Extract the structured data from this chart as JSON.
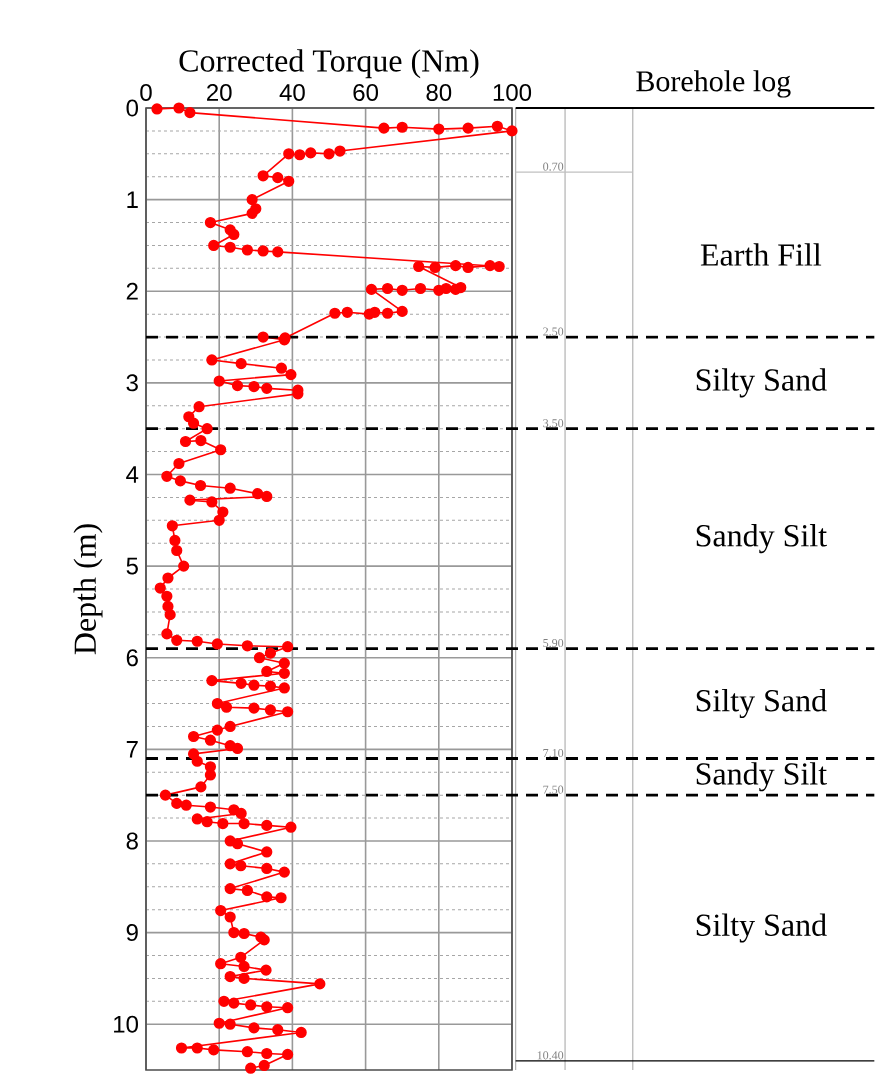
{
  "chart_data": {
    "type": "line",
    "xlabel": "Corrected Torque (Nm)",
    "ylabel": "Depth (m)",
    "xlim": [
      0,
      100
    ],
    "xticks": [
      0,
      20,
      40,
      60,
      80,
      100
    ],
    "ylim": [
      10.5,
      0
    ],
    "yticks": [
      0,
      1,
      2,
      3,
      4,
      5,
      6,
      7,
      8,
      9,
      10
    ],
    "grid": true,
    "marker": "circle",
    "series": [
      {
        "color": "#ff0000",
        "x": [
          3,
          9,
          12,
          65,
          70,
          80,
          88,
          96,
          100,
          53,
          50,
          45,
          42,
          39,
          32,
          36,
          39,
          29,
          30,
          29,
          17.6,
          23,
          24,
          18.5,
          23,
          27.7,
          32,
          36,
          96.5,
          94,
          88,
          84.6,
          79,
          74.5,
          86,
          84.6,
          82,
          80,
          75,
          70,
          66,
          61.6,
          70,
          66,
          62.5,
          61,
          55,
          51.6,
          38,
          32,
          37.8,
          18,
          26,
          37,
          39.6,
          20,
          25,
          29.5,
          33,
          41.5,
          41.5,
          14.5,
          11.7,
          13,
          16.7,
          10.8,
          15,
          20.4,
          9,
          5.7,
          9.4,
          14.9,
          23,
          30.5,
          33,
          12,
          18,
          21,
          20,
          7.2,
          7.9,
          8.4,
          10.3,
          6,
          3.9,
          5.7,
          6,
          6.6,
          5.7,
          8.4,
          14,
          19.5,
          27.7,
          38.7,
          34,
          31,
          37.8,
          33,
          37.8,
          18,
          26,
          29.5,
          34,
          37.8,
          19.5,
          22,
          29.5,
          34,
          38.7,
          23,
          19.5,
          13,
          17.6,
          23,
          25,
          13,
          14,
          17.6,
          17.6,
          15,
          5.3,
          8.4,
          11,
          17.6,
          24,
          26,
          14,
          16.7,
          21,
          26.8,
          33,
          39.6,
          23,
          25,
          33,
          23,
          25.9,
          33,
          37.8,
          23,
          27.7,
          33,
          36.9,
          20.4,
          23,
          24,
          26.8,
          31.4,
          32.3,
          25.9,
          20.4,
          26.8,
          32.8,
          23,
          26.8,
          47.5,
          21.3,
          24,
          28.6,
          33,
          38.7,
          20,
          23,
          29.5,
          36,
          42.4,
          9.7,
          14,
          18.5,
          27.7,
          33,
          38.7,
          32.3,
          28.6
        ],
        "values": [
          0.01,
          0.0,
          0.05,
          0.22,
          0.21,
          0.23,
          0.22,
          0.2,
          0.25,
          0.47,
          0.5,
          0.49,
          0.51,
          0.5,
          0.74,
          0.76,
          0.8,
          1.0,
          1.1,
          1.15,
          1.25,
          1.33,
          1.38,
          1.5,
          1.52,
          1.55,
          1.56,
          1.57,
          1.73,
          1.72,
          1.74,
          1.72,
          1.74,
          1.73,
          1.96,
          1.98,
          1.97,
          1.99,
          1.97,
          1.99,
          1.97,
          1.98,
          2.22,
          2.24,
          2.23,
          2.25,
          2.23,
          2.24,
          2.51,
          2.5,
          2.53,
          2.75,
          2.79,
          2.84,
          2.91,
          2.98,
          3.03,
          3.04,
          3.06,
          3.08,
          3.12,
          3.26,
          3.37,
          3.44,
          3.5,
          3.64,
          3.63,
          3.73,
          3.88,
          4.02,
          4.07,
          4.12,
          4.15,
          4.21,
          4.24,
          4.28,
          4.3,
          4.41,
          4.5,
          4.56,
          4.72,
          4.83,
          5.0,
          5.13,
          5.24,
          5.33,
          5.44,
          5.53,
          5.74,
          5.81,
          5.82,
          5.85,
          5.87,
          5.88,
          5.95,
          6.0,
          6.06,
          6.15,
          6.17,
          6.25,
          6.28,
          6.3,
          6.31,
          6.33,
          6.5,
          6.54,
          6.55,
          6.57,
          6.59,
          6.75,
          6.79,
          6.86,
          6.9,
          6.96,
          6.99,
          7.05,
          7.13,
          7.19,
          7.28,
          7.41,
          7.5,
          7.59,
          7.61,
          7.63,
          7.66,
          7.7,
          7.76,
          7.79,
          7.81,
          7.81,
          7.83,
          7.85,
          8.0,
          8.03,
          8.12,
          8.25,
          8.27,
          8.3,
          8.34,
          8.52,
          8.54,
          8.61,
          8.62,
          8.76,
          8.83,
          9.0,
          9.01,
          9.05,
          9.08,
          9.27,
          9.34,
          9.37,
          9.41,
          9.48,
          9.5,
          9.56,
          9.75,
          9.77,
          9.79,
          9.81,
          9.82,
          9.99,
          10.0,
          10.04,
          10.06,
          10.09,
          10.26,
          10.26,
          10.28,
          10.3,
          10.32,
          10.33,
          10.45,
          10.48
        ]
      }
    ],
    "ref_lines": [
      {
        "axis": "y",
        "value": 0.7,
        "label": "0.70",
        "line_style": "solid",
        "color": "#c0c0c0"
      },
      {
        "axis": "y",
        "value": 2.5,
        "label": "2.50",
        "line_style": "dashed",
        "color": "#000000"
      },
      {
        "axis": "y",
        "value": 3.5,
        "label": "3.50",
        "line_style": "dashed",
        "color": "#000000"
      },
      {
        "axis": "y",
        "value": 5.9,
        "label": "5.90",
        "line_style": "dashed",
        "color": "#000000"
      },
      {
        "axis": "y",
        "value": 7.1,
        "label": "7.10",
        "line_style": "dashed",
        "color": "#000000"
      },
      {
        "axis": "y",
        "value": 7.5,
        "label": "7.50",
        "line_style": "dashed",
        "color": "#000000"
      },
      {
        "axis": "y",
        "value": 10.4,
        "label": "10.40",
        "line_style": "solid",
        "color": "#000000"
      }
    ],
    "annotations": [
      "Borehole log",
      "Earth Fill",
      "Silty Sand",
      "Sandy Silt",
      "Silty Sand",
      "Sandy Silt",
      "Silty Sand"
    ]
  }
}
